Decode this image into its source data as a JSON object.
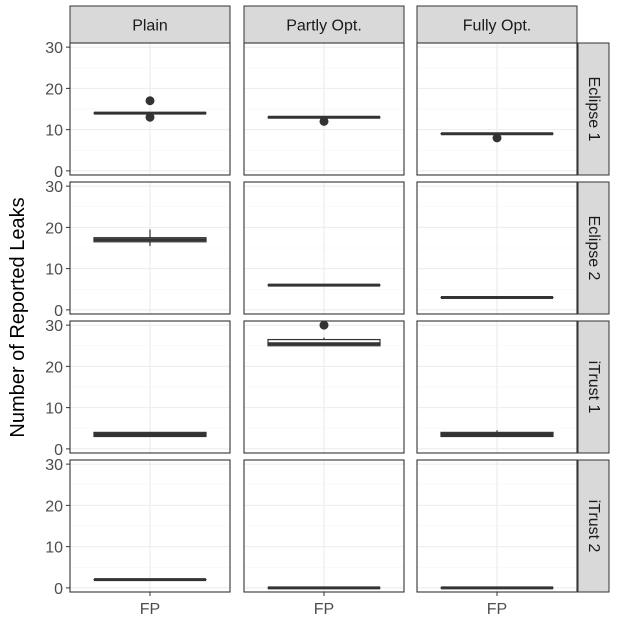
{
  "chart_data": {
    "type": "boxplot",
    "ylabel": "Number of Reported Leaks",
    "xlabel": "",
    "x_categories": [
      "FP"
    ],
    "columns": [
      "Plain",
      "Partly Opt.",
      "Fully Opt."
    ],
    "rows": [
      "Eclipse 1",
      "Eclipse 2",
      "iTrust 1",
      "iTrust 2"
    ],
    "ylim": [
      -1,
      31
    ],
    "yticks": [
      0,
      10,
      20,
      30
    ],
    "grid": true,
    "panels": [
      {
        "row": "Eclipse 1",
        "col": "Plain",
        "min": 14,
        "q1": 14,
        "median": 14,
        "q3": 14,
        "max": 14,
        "outliers": [
          13,
          17
        ]
      },
      {
        "row": "Eclipse 1",
        "col": "Partly Opt.",
        "min": 13,
        "q1": 13,
        "median": 13,
        "q3": 13,
        "max": 13,
        "outliers": [
          12
        ]
      },
      {
        "row": "Eclipse 1",
        "col": "Fully Opt.",
        "min": 9,
        "q1": 9,
        "median": 9,
        "q3": 9,
        "max": 9,
        "outliers": [
          8
        ]
      },
      {
        "row": "Eclipse 2",
        "col": "Plain",
        "min": 15.5,
        "q1": 16.5,
        "median": 17,
        "q3": 17.5,
        "max": 19.5,
        "outliers": []
      },
      {
        "row": "Eclipse 2",
        "col": "Partly Opt.",
        "min": 6,
        "q1": 6,
        "median": 6,
        "q3": 6,
        "max": 6,
        "outliers": []
      },
      {
        "row": "Eclipse 2",
        "col": "Fully Opt.",
        "min": 3,
        "q1": 3,
        "median": 3,
        "q3": 3,
        "max": 3,
        "outliers": []
      },
      {
        "row": "iTrust 1",
        "col": "Plain",
        "min": 3,
        "q1": 3,
        "median": 3.5,
        "q3": 4,
        "max": 4,
        "outliers": []
      },
      {
        "row": "iTrust 1",
        "col": "Partly Opt.",
        "min": 25,
        "q1": 25,
        "median": 25.5,
        "q3": 26.5,
        "max": 27,
        "outliers": [
          30
        ]
      },
      {
        "row": "iTrust 1",
        "col": "Fully Opt.",
        "min": 3,
        "q1": 3,
        "median": 3.5,
        "q3": 4,
        "max": 4.5,
        "outliers": []
      },
      {
        "row": "iTrust 2",
        "col": "Plain",
        "min": 2,
        "q1": 2,
        "median": 2,
        "q3": 2,
        "max": 2,
        "outliers": []
      },
      {
        "row": "iTrust 2",
        "col": "Partly Opt.",
        "min": 0,
        "q1": 0,
        "median": 0,
        "q3": 0,
        "max": 0,
        "outliers": []
      },
      {
        "row": "iTrust 2",
        "col": "Fully Opt.",
        "min": 0,
        "q1": 0,
        "median": 0,
        "q3": 0,
        "max": 0,
        "outliers": []
      }
    ],
    "colors": {
      "strip_fill": "#d9d9d9",
      "strip_border": "#333333",
      "panel_border": "#333333",
      "grid_major": "#ebebeb",
      "grid_minor": "#f5f5f5",
      "box_line": "#333333",
      "box_fill": "#ffffff",
      "tick_text": "#4d4d4d",
      "axis_title": "#000000"
    }
  }
}
